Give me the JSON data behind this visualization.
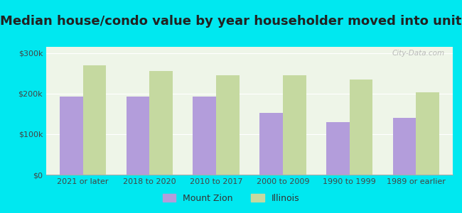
{
  "title": "Median house/condo value by year householder moved into unit",
  "categories": [
    "2021 or later",
    "2018 to 2020",
    "2010 to 2017",
    "2000 to 2009",
    "1990 to 1999",
    "1989 or earlier"
  ],
  "mount_zion": [
    193000,
    193000,
    192000,
    152000,
    130000,
    140000
  ],
  "illinois": [
    270000,
    255000,
    245000,
    245000,
    235000,
    203000
  ],
  "mount_zion_color": "#b39ddb",
  "illinois_color": "#c5d9a0",
  "background_outer": "#00e8f0",
  "background_inner": "#eef5e8",
  "yticks": [
    0,
    100000,
    200000,
    300000
  ],
  "ylabels": [
    "$0",
    "$100k",
    "$200k",
    "$300k"
  ],
  "ylim": [
    0,
    315000
  ],
  "bar_width": 0.35,
  "legend_mount_zion": "Mount Zion",
  "legend_illinois": "Illinois",
  "watermark": "City-Data.com",
  "title_fontsize": 13,
  "tick_fontsize": 8,
  "legend_fontsize": 9
}
